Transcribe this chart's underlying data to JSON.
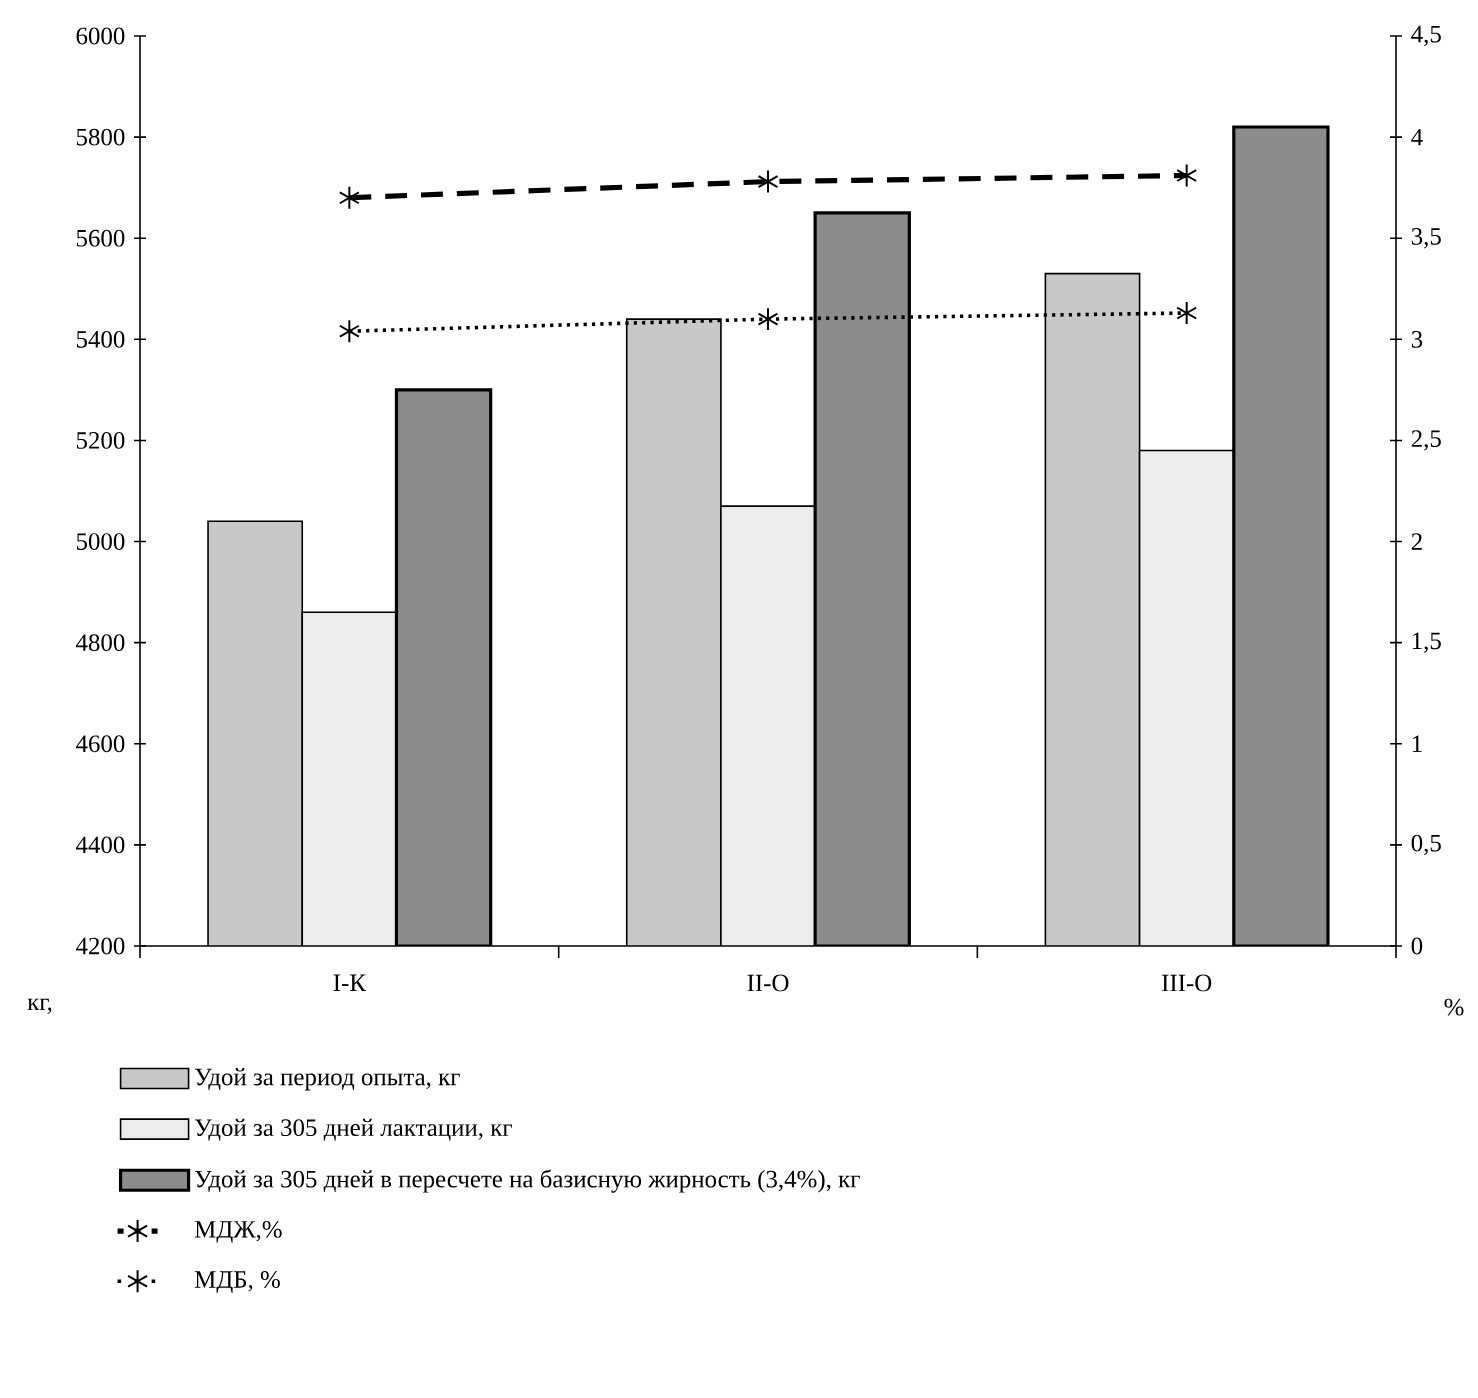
{
  "chart_data": {
    "type": "bar",
    "categories": [
      "I-К",
      "II-О",
      "III-О"
    ],
    "ylabel": "кг,",
    "y2label": "%",
    "ylim": [
      4200,
      6000
    ],
    "yticks": [
      4200,
      4400,
      4600,
      4800,
      5000,
      5200,
      5400,
      5600,
      5800,
      6000
    ],
    "y2lim": [
      0,
      4.5
    ],
    "y2ticks": [
      0,
      {
        "value": 0.5,
        "label": "0,5"
      },
      1,
      {
        "value": 1.5,
        "label": "1,5"
      },
      2,
      {
        "value": 2.5,
        "label": "2,5"
      },
      3,
      {
        "value": 3.5,
        "label": "3,5"
      },
      4,
      {
        "value": 4.5,
        "label": "4,5"
      }
    ],
    "legend": "bottom",
    "series": [
      {
        "name": "Удой за период опыта, кг",
        "color": "#c8c8c8",
        "values": [
          5040,
          5440,
          5530
        ]
      },
      {
        "name": "Удой за 305 дней лактации, кг",
        "color": "#ececec",
        "values": [
          4860,
          5070,
          5180
        ]
      },
      {
        "name": "Удой за 305 дней в пересчете на базисную жирность (3,4%), кг",
        "color": "#8c8c8c",
        "values": [
          5300,
          5650,
          5820
        ]
      },
      {
        "name": "МДЖ,%",
        "type": "line",
        "axis": "y2",
        "color": "#000000",
        "marker": "cross",
        "line_style": "dashed",
        "values": [
          3.7,
          3.78,
          3.81
        ]
      },
      {
        "name": "МДБ, %",
        "type": "line",
        "axis": "y2",
        "color": "#000000",
        "marker": "cross",
        "line_style": "dotted",
        "values": [
          3.04,
          3.1,
          3.13
        ]
      }
    ]
  }
}
